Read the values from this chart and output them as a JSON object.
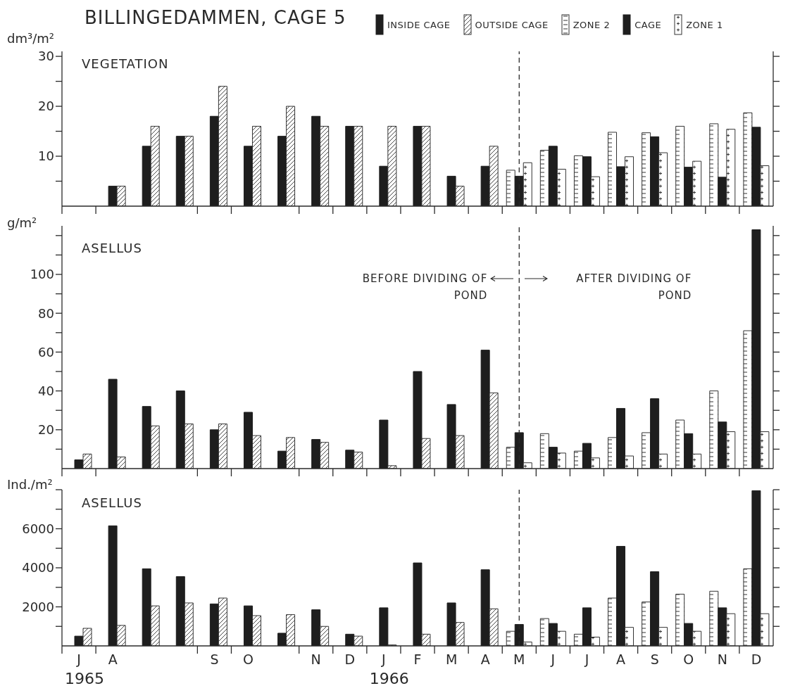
{
  "chart_data": [
    {
      "type": "bar",
      "title": "BILLINGEDAMMEN, CAGE 5",
      "subtitle": "VEGETATION",
      "ylabel": "dm³/m²",
      "categories": [
        null,
        null,
        null,
        null,
        null,
        null,
        null,
        null,
        null,
        null,
        null,
        null,
        null,
        null,
        null,
        null,
        null,
        null,
        null,
        null,
        null
      ],
      "ylim": [
        0,
        31
      ],
      "yticks": [
        {
          "value": 5,
          "label": null
        },
        10,
        {
          "value": 15,
          "label": null
        },
        20,
        {
          "value": 25,
          "label": null
        },
        30
      ],
      "legend": "top",
      "series": [
        {
          "name": "INSIDE CAGE",
          "color": "#1e1e1e",
          "values": [
            null,
            4,
            12,
            14,
            18,
            12,
            14,
            18,
            16,
            8,
            16,
            6,
            8,
            null,
            null,
            null,
            null,
            null,
            null,
            null,
            null
          ]
        },
        {
          "name": "OUTSIDE CAGE",
          "color": "#333333",
          "values": [
            null,
            4,
            16,
            14,
            24,
            16,
            20,
            16,
            16,
            16,
            16,
            4,
            12,
            null,
            null,
            null,
            null,
            null,
            null,
            null,
            null
          ]
        },
        {
          "name": "ZONE 2",
          "color": "#333333",
          "values": [
            null,
            null,
            null,
            null,
            null,
            null,
            null,
            null,
            null,
            null,
            null,
            null,
            null,
            7.2,
            11.2,
            10.1,
            14.8,
            14.7,
            16,
            16.5,
            18.7
          ]
        },
        {
          "name": "CAGE",
          "color": "#1e1e1e",
          "values": [
            null,
            null,
            null,
            null,
            null,
            null,
            null,
            null,
            null,
            null,
            null,
            null,
            null,
            6,
            12,
            9.9,
            7.9,
            13.9,
            7.8,
            5.8,
            15.8
          ]
        },
        {
          "name": "ZONE 1",
          "color": "#333333",
          "values": [
            null,
            null,
            null,
            null,
            null,
            null,
            null,
            null,
            null,
            null,
            null,
            null,
            null,
            8.7,
            7.4,
            5.9,
            9.9,
            10.7,
            9,
            15.4,
            8.1
          ]
        }
      ]
    },
    {
      "type": "bar",
      "title": "ASELLUS",
      "ylabel": "g/m²",
      "categories": [
        null,
        null,
        null,
        null,
        null,
        null,
        null,
        null,
        null,
        null,
        null,
        null,
        null,
        null,
        null,
        null,
        null,
        null,
        null,
        null,
        null
      ],
      "ylim": [
        0,
        125
      ],
      "yticks": [
        {
          "value": 10,
          "label": null
        },
        20,
        {
          "value": 30,
          "label": null
        },
        40,
        {
          "value": 50,
          "label": null
        },
        60,
        {
          "value": 70,
          "label": null
        },
        80,
        {
          "value": 90,
          "label": null
        },
        100,
        {
          "value": 110,
          "label": null
        },
        {
          "value": 120,
          "label": null
        }
      ],
      "annotations": [
        "BEFORE DIVIDING OF POND",
        "AFTER DIVIDING OF POND"
      ],
      "series": [
        {
          "color": "#1e1e1e",
          "values": [
            4.5,
            46,
            32,
            40,
            20,
            29,
            9,
            15,
            9.5,
            25,
            50,
            33,
            61,
            null,
            null,
            null,
            null,
            null,
            null,
            null,
            null
          ]
        },
        {
          "color": "#333333",
          "values": [
            7.5,
            6,
            22,
            23,
            23,
            17,
            16,
            13.5,
            8.5,
            1.5,
            15.5,
            17,
            39,
            null,
            null,
            null,
            null,
            null,
            null,
            null,
            null
          ]
        },
        {
          "color": "#333333",
          "values": [
            null,
            null,
            null,
            null,
            null,
            null,
            null,
            null,
            null,
            null,
            null,
            null,
            null,
            11,
            18,
            9,
            16,
            18.5,
            25,
            40,
            71
          ]
        },
        {
          "color": "#1e1e1e",
          "values": [
            null,
            null,
            null,
            null,
            null,
            null,
            null,
            null,
            null,
            null,
            null,
            null,
            null,
            18.5,
            11,
            13,
            31,
            36,
            18,
            24,
            123
          ]
        },
        {
          "color": "#333333",
          "values": [
            null,
            null,
            null,
            null,
            null,
            null,
            null,
            null,
            null,
            null,
            null,
            null,
            null,
            3,
            8,
            5.5,
            6.5,
            7.5,
            7.5,
            19,
            19
          ]
        }
      ]
    },
    {
      "type": "bar",
      "title": "ASELLUS",
      "ylabel": "Ind./m²",
      "categories": [
        "J",
        "A",
        null,
        null,
        "S",
        "O",
        null,
        "N",
        "D",
        "J",
        "F",
        "M",
        "A",
        "M",
        "J",
        "J",
        "A",
        "S",
        "O",
        "N",
        "D"
      ],
      "ylim": [
        0,
        8000
      ],
      "yticks": [
        {
          "value": 1000,
          "label": null
        },
        2000,
        {
          "value": 3000,
          "label": null
        },
        4000,
        {
          "value": 5000,
          "label": null
        },
        6000,
        {
          "value": 7000,
          "label": null
        },
        {
          "value": 8000,
          "label": null
        }
      ],
      "annotations": [
        "1965",
        "1966"
      ],
      "series": [
        {
          "color": "#1e1e1e",
          "values": [
            500,
            6150,
            3950,
            3550,
            2150,
            2050,
            650,
            1850,
            600,
            1950,
            4250,
            2200,
            3900,
            null,
            null,
            null,
            null,
            null,
            null,
            null,
            null
          ]
        },
        {
          "color": "#333333",
          "values": [
            900,
            1050,
            2050,
            2200,
            2450,
            1550,
            1600,
            1000,
            500,
            50,
            600,
            1200,
            1900,
            null,
            null,
            null,
            null,
            null,
            null,
            null,
            null
          ]
        },
        {
          "color": "#333333",
          "values": [
            null,
            null,
            null,
            null,
            null,
            null,
            null,
            null,
            null,
            null,
            null,
            null,
            null,
            750,
            1400,
            600,
            2450,
            2250,
            2650,
            2800,
            3950
          ]
        },
        {
          "color": "#1e1e1e",
          "values": [
            null,
            null,
            null,
            null,
            null,
            null,
            null,
            null,
            null,
            null,
            null,
            null,
            null,
            1100,
            1150,
            1950,
            5100,
            3800,
            1150,
            1950,
            7950
          ]
        },
        {
          "color": "#333333",
          "values": [
            null,
            null,
            null,
            null,
            null,
            null,
            null,
            null,
            null,
            null,
            null,
            null,
            null,
            200,
            750,
            450,
            950,
            950,
            750,
            1650,
            1650
          ]
        }
      ]
    }
  ]
}
